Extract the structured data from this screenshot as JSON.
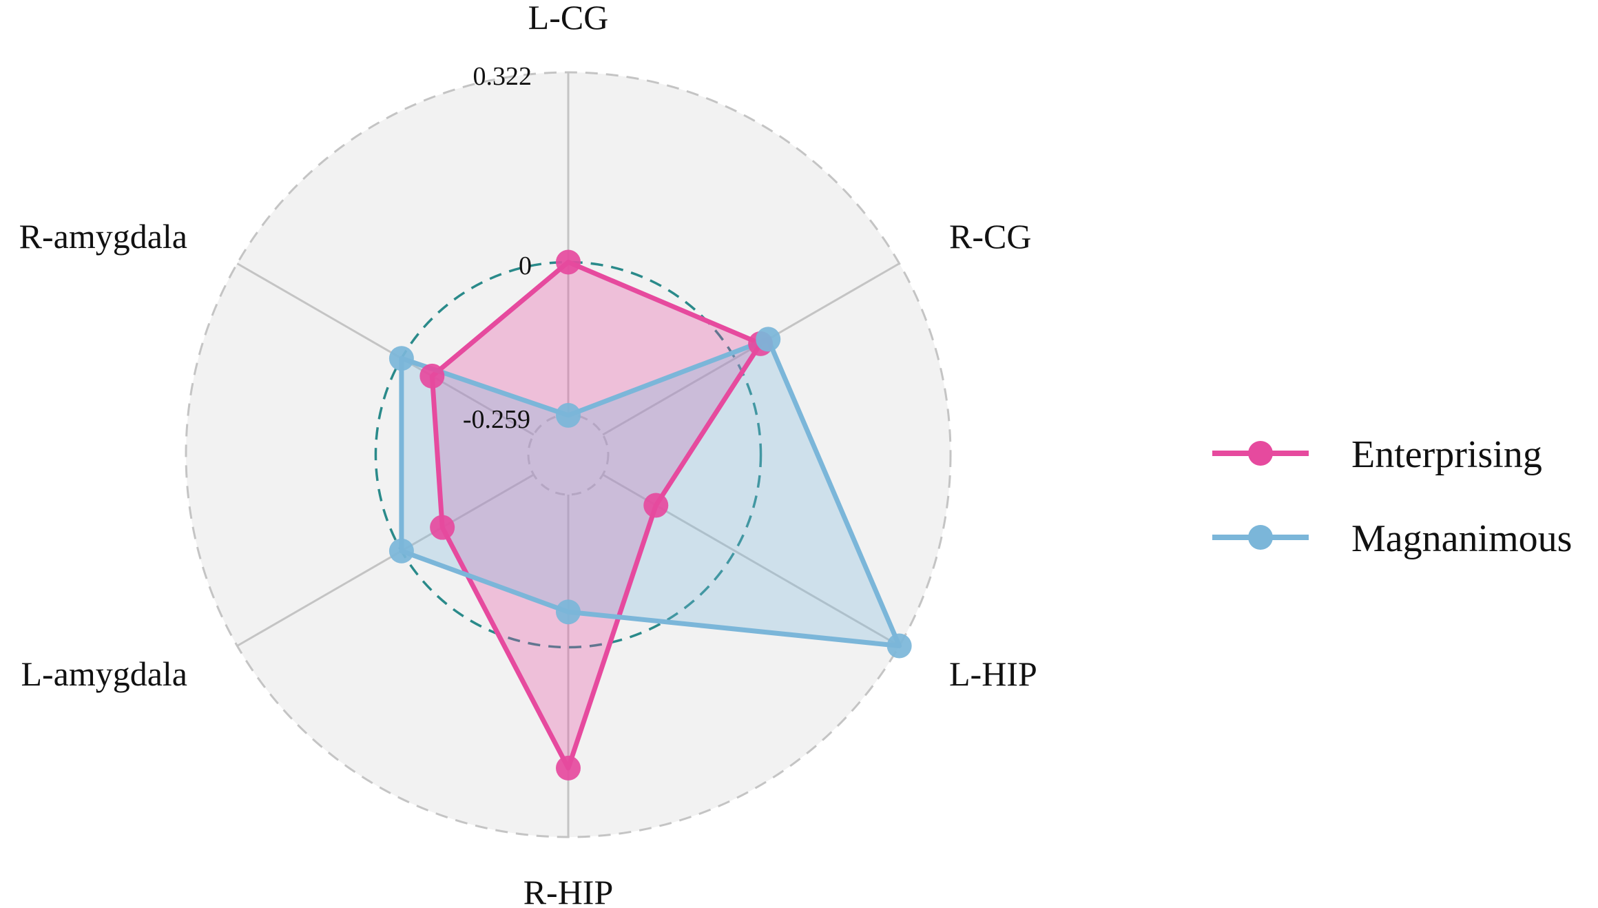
{
  "chart_data": {
    "type": "radar",
    "categories": [
      "L-CG",
      "R-CG",
      "L-HIP",
      "R-HIP",
      "L-amygdala",
      "R-amygdala"
    ],
    "range": [
      -0.259,
      0.322
    ],
    "tick_labels": [
      "-0.259",
      "0",
      "0.322"
    ],
    "reference_ring": 0,
    "series": [
      {
        "name": "Enterprising",
        "color": "#E64A9E",
        "values": [
          0.0,
          0.05,
          -0.155,
          0.205,
          -0.08,
          -0.06
        ]
      },
      {
        "name": "Magnanimous",
        "color": "#7BB6D9",
        "values": [
          -0.26,
          0.065,
          0.322,
          -0.06,
          0.0,
          0.0
        ]
      }
    ],
    "legend_position": "right",
    "grid": true
  }
}
